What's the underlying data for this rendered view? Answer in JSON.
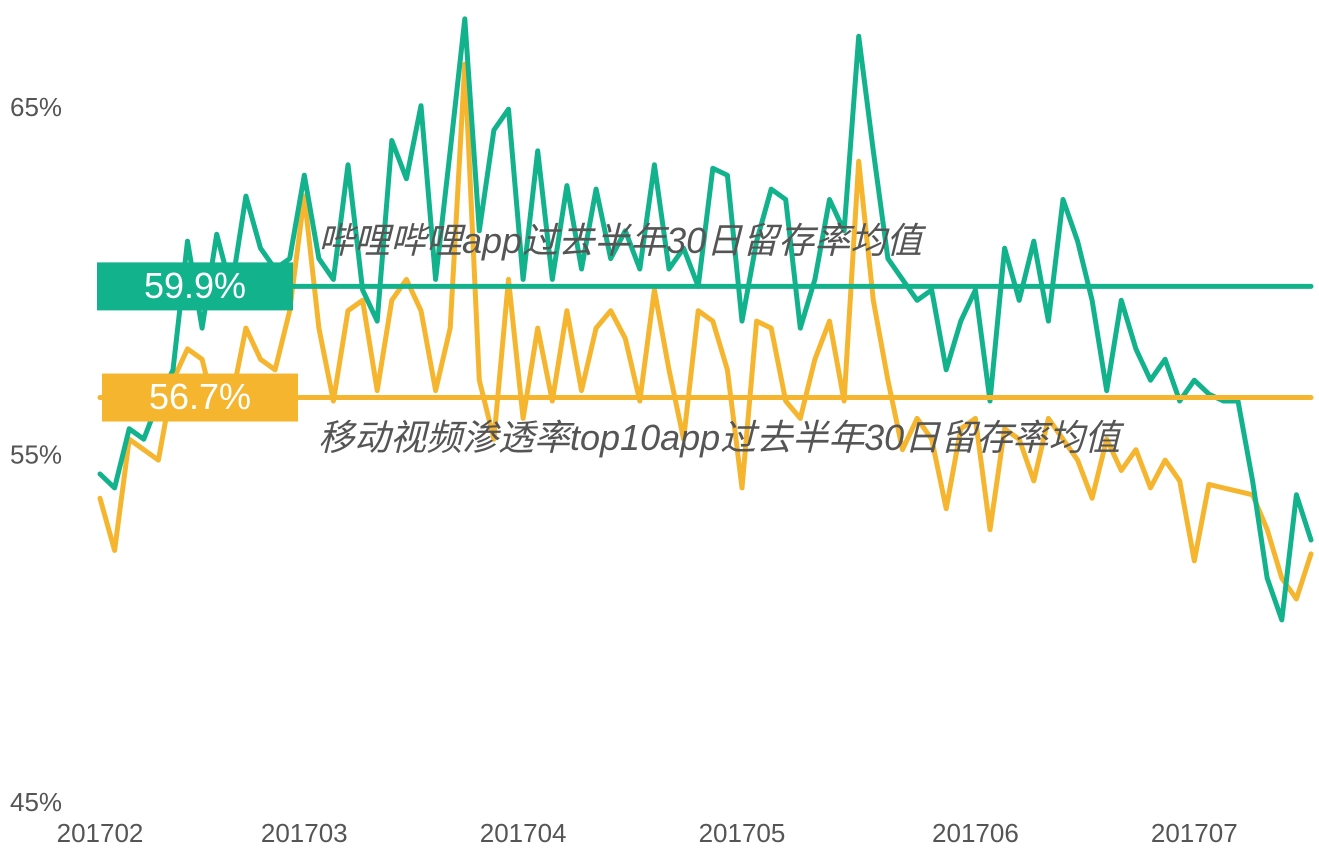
{
  "chart_data": {
    "type": "line",
    "categories": [
      "201702",
      null,
      null,
      null,
      null,
      null,
      null,
      null,
      null,
      null,
      null,
      null,
      null,
      null,
      "201703",
      null,
      null,
      null,
      null,
      null,
      null,
      null,
      null,
      null,
      null,
      null,
      null,
      null,
      null,
      "201704",
      null,
      null,
      null,
      null,
      null,
      null,
      null,
      null,
      null,
      null,
      null,
      null,
      null,
      null,
      "201705",
      null,
      null,
      null,
      null,
      null,
      null,
      null,
      null,
      null,
      null,
      null,
      null,
      null,
      null,
      null,
      "201706",
      null,
      null,
      null,
      null,
      null,
      null,
      null,
      null,
      null,
      null,
      null,
      null,
      null,
      null,
      "201707",
      null,
      null,
      null,
      null,
      null,
      null,
      null,
      null
    ],
    "series": [
      {
        "name": null,
        "color": "#f5b52e",
        "values": [
          53.8,
          52.3,
          55.5,
          55.2,
          54.9,
          57.2,
          58.1,
          57.8,
          56.1,
          56.6,
          58.7,
          57.8,
          57.5,
          59.2,
          62.5,
          58.7,
          56.6,
          59.2,
          59.5,
          56.9,
          59.5,
          60.1,
          59.2,
          56.9,
          58.7,
          66.3,
          57.2,
          55.5,
          60.1,
          56.1,
          58.7,
          56.6,
          59.2,
          56.9,
          58.7,
          59.2,
          58.4,
          56.6,
          59.8,
          57.5,
          55.5,
          59.2,
          58.9,
          57.5,
          54.1,
          58.9,
          58.7,
          56.6,
          56.1,
          57.8,
          58.9,
          56.6,
          63.5,
          59.5,
          57.2,
          55.2,
          56.1,
          55.5,
          53.5,
          55.8,
          56.1,
          52.9,
          55.8,
          55.5,
          54.3,
          56.1,
          55.5,
          54.9,
          53.8,
          55.5,
          54.6,
          55.2,
          54.1,
          54.9,
          54.3,
          52.0,
          54.2,
          54.1,
          54.0,
          53.9,
          52.9,
          51.5,
          50.9,
          52.2
        ]
      },
      {
        "name": null,
        "color": "#12b28c",
        "values": [
          54.5,
          54.1,
          55.8,
          55.5,
          56.6,
          57.5,
          61.2,
          58.7,
          61.4,
          59.8,
          62.5,
          61.0,
          60.4,
          60.7,
          63.1,
          60.7,
          60.1,
          63.4,
          59.8,
          58.9,
          64.1,
          63.0,
          65.1,
          60.1,
          63.8,
          67.6,
          61.5,
          64.4,
          65.0,
          60.1,
          63.8,
          60.1,
          62.8,
          60.4,
          62.7,
          60.7,
          61.5,
          60.4,
          63.4,
          60.4,
          61.0,
          59.9,
          63.3,
          63.1,
          58.9,
          61.2,
          62.7,
          62.4,
          58.7,
          60.1,
          62.4,
          61.5,
          67.1,
          63.8,
          60.7,
          60.1,
          59.5,
          59.8,
          57.5,
          58.9,
          59.8,
          56.6,
          61.0,
          59.5,
          61.2,
          58.9,
          62.4,
          61.2,
          59.5,
          56.9,
          59.5,
          58.1,
          57.2,
          57.8,
          56.6,
          57.2,
          56.8,
          56.6,
          56.6,
          54.3,
          51.5,
          50.3,
          53.9,
          52.6
        ]
      }
    ],
    "reference_lines": [
      {
        "value": 59.9,
        "label": "59.9%",
        "color": "#12b28c",
        "text": "哔哩哔哩app过去半年30日留存率均值"
      },
      {
        "value": 56.7,
        "label": "56.7%",
        "color": "#f5b52e",
        "text": "移动视频渗透率top10app过去半年30日留存率均值"
      }
    ],
    "ylim": [
      45,
      68
    ],
    "yticks": [
      {
        "value": 45,
        "label": "45%"
      },
      {
        "value": 55,
        "label": "55%"
      },
      {
        "value": 65,
        "label": "65%"
      }
    ],
    "grid": false
  }
}
